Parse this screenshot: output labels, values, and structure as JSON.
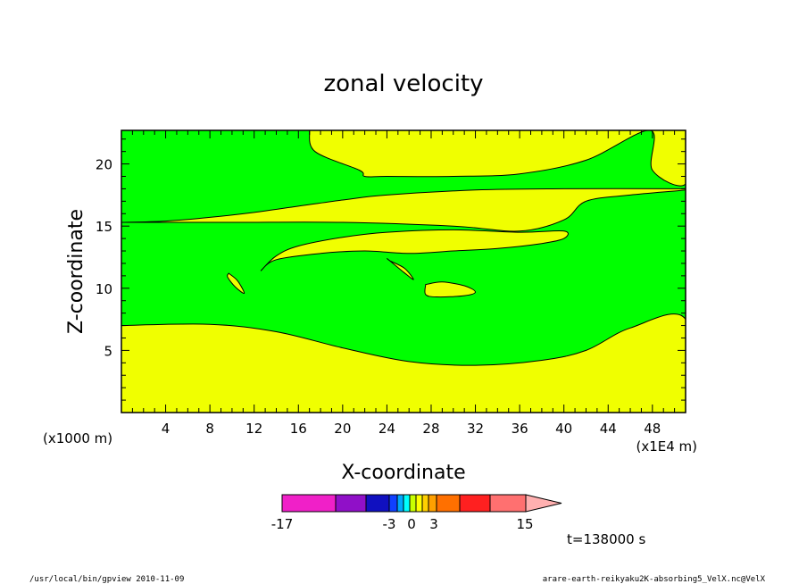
{
  "chart_data": {
    "type": "heatmap",
    "subtype": "filled-contour",
    "title": "zonal velocity",
    "xlabel": "X-coordinate",
    "ylabel": "Z-coordinate",
    "x_units_label": "(x1000 m)",
    "x_scale_label": "(x1E4 m)",
    "xlim": [
      0,
      51
    ],
    "ylim": [
      0,
      22.7
    ],
    "x_ticks": [
      4,
      8,
      12,
      16,
      20,
      24,
      28,
      32,
      36,
      40,
      44,
      48
    ],
    "y_ticks": [
      5,
      10,
      15,
      20
    ],
    "x_tick_labels": [
      "4",
      "8",
      "12",
      "16",
      "20",
      "24",
      "28",
      "32",
      "36",
      "40",
      "44",
      "48"
    ],
    "y_tick_labels": [
      "5",
      "10",
      "15",
      "20"
    ],
    "colors": {
      "positive_band": "#f0ff00",
      "near_zero_band": "#00ff00",
      "frame": "#000000"
    },
    "regions": [
      {
        "band": "positive",
        "description": "lower layer",
        "outline": [
          [
            0,
            0
          ],
          [
            51,
            0
          ],
          [
            51,
            7.5
          ],
          [
            46,
            6.8
          ],
          [
            42,
            5.0
          ],
          [
            38,
            4.2
          ],
          [
            32,
            3.8
          ],
          [
            26,
            4.1
          ],
          [
            20,
            5.2
          ],
          [
            14,
            6.5
          ],
          [
            8,
            7.1
          ],
          [
            0,
            7.0
          ]
        ]
      },
      {
        "band": "positive",
        "description": "middle layer between z~15.3 and z~18",
        "outline": [
          [
            0,
            15.3
          ],
          [
            10,
            15.3
          ],
          [
            20,
            15.3
          ],
          [
            30,
            15.0
          ],
          [
            36,
            14.6
          ],
          [
            40,
            15.5
          ],
          [
            42,
            17.0
          ],
          [
            46,
            17.5
          ],
          [
            51,
            17.9
          ],
          [
            51,
            18.0
          ],
          [
            40,
            18.0
          ],
          [
            32,
            17.9
          ],
          [
            24,
            17.5
          ],
          [
            20,
            17.1
          ],
          [
            16,
            16.6
          ],
          [
            12,
            16.1
          ],
          [
            8,
            15.7
          ],
          [
            4,
            15.4
          ],
          [
            0,
            15.3
          ]
        ]
      },
      {
        "band": "positive",
        "description": "upper layer",
        "outline": [
          [
            0,
            22.7
          ],
          [
            51,
            22.7
          ],
          [
            51,
            18.4
          ],
          [
            48,
            19.5
          ],
          [
            47.8,
            22.7
          ],
          [
            42,
            20.3
          ],
          [
            36,
            19.2
          ],
          [
            30,
            19.0
          ],
          [
            24,
            19.0
          ],
          [
            22,
            19.0
          ],
          [
            21.5,
            19.5
          ],
          [
            17.5,
            21.0
          ],
          [
            17,
            22.7
          ]
        ]
      },
      {
        "band": "positive",
        "description": "elongated tongue near z~13",
        "outline": [
          [
            12.6,
            11.4
          ],
          [
            14,
            12.3
          ],
          [
            18,
            12.8
          ],
          [
            22,
            13.0
          ],
          [
            26,
            12.8
          ],
          [
            30,
            13.0
          ],
          [
            34,
            13.2
          ],
          [
            38,
            13.6
          ],
          [
            40,
            14.0
          ],
          [
            40,
            14.6
          ],
          [
            36,
            14.5
          ],
          [
            30,
            14.7
          ],
          [
            24,
            14.5
          ],
          [
            20,
            14.1
          ],
          [
            16,
            13.4
          ],
          [
            14,
            12.6
          ],
          [
            12.6,
            11.4
          ]
        ]
      },
      {
        "band": "positive",
        "description": "small lens near x~10",
        "outline": [
          [
            9.7,
            11.2
          ],
          [
            10.5,
            10.6
          ],
          [
            11.1,
            9.6
          ],
          [
            10.3,
            10.1
          ],
          [
            9.6,
            10.9
          ],
          [
            9.7,
            11.2
          ]
        ]
      },
      {
        "band": "positive",
        "description": "small lens near x~26",
        "outline": [
          [
            24,
            12.4
          ],
          [
            25.5,
            11.3
          ],
          [
            26.4,
            10.7
          ],
          [
            25.6,
            11.6
          ],
          [
            24.3,
            12.2
          ],
          [
            24,
            12.4
          ]
        ]
      },
      {
        "band": "positive",
        "description": "lens near x~30, z~9.8",
        "outline": [
          [
            27.5,
            10.3
          ],
          [
            29,
            10.5
          ],
          [
            31,
            10.2
          ],
          [
            32,
            9.7
          ],
          [
            31,
            9.4
          ],
          [
            28.5,
            9.3
          ],
          [
            27.5,
            9.5
          ],
          [
            27.5,
            10.3
          ]
        ]
      }
    ],
    "colorbar": {
      "labels": [
        "-17",
        "-3",
        "0",
        "3",
        "15"
      ],
      "colors": [
        "#f020c8",
        "#9010c8",
        "#1010c0",
        "#1040ff",
        "#00a8ff",
        "#00ffff",
        "#c8ff00",
        "#ffff00",
        "#ffd000",
        "#ffa000",
        "#ff7000",
        "#ff2020",
        "#ff7070",
        "#ffb0b0"
      ],
      "extend": "max"
    }
  },
  "annotations": {
    "time": "t=138000 s",
    "footer_left": "/usr/local/bin/gpview  2010-11-09",
    "footer_right": "arare-earth-reikyaku2K-absorbing5_VelX.nc@VelX"
  }
}
